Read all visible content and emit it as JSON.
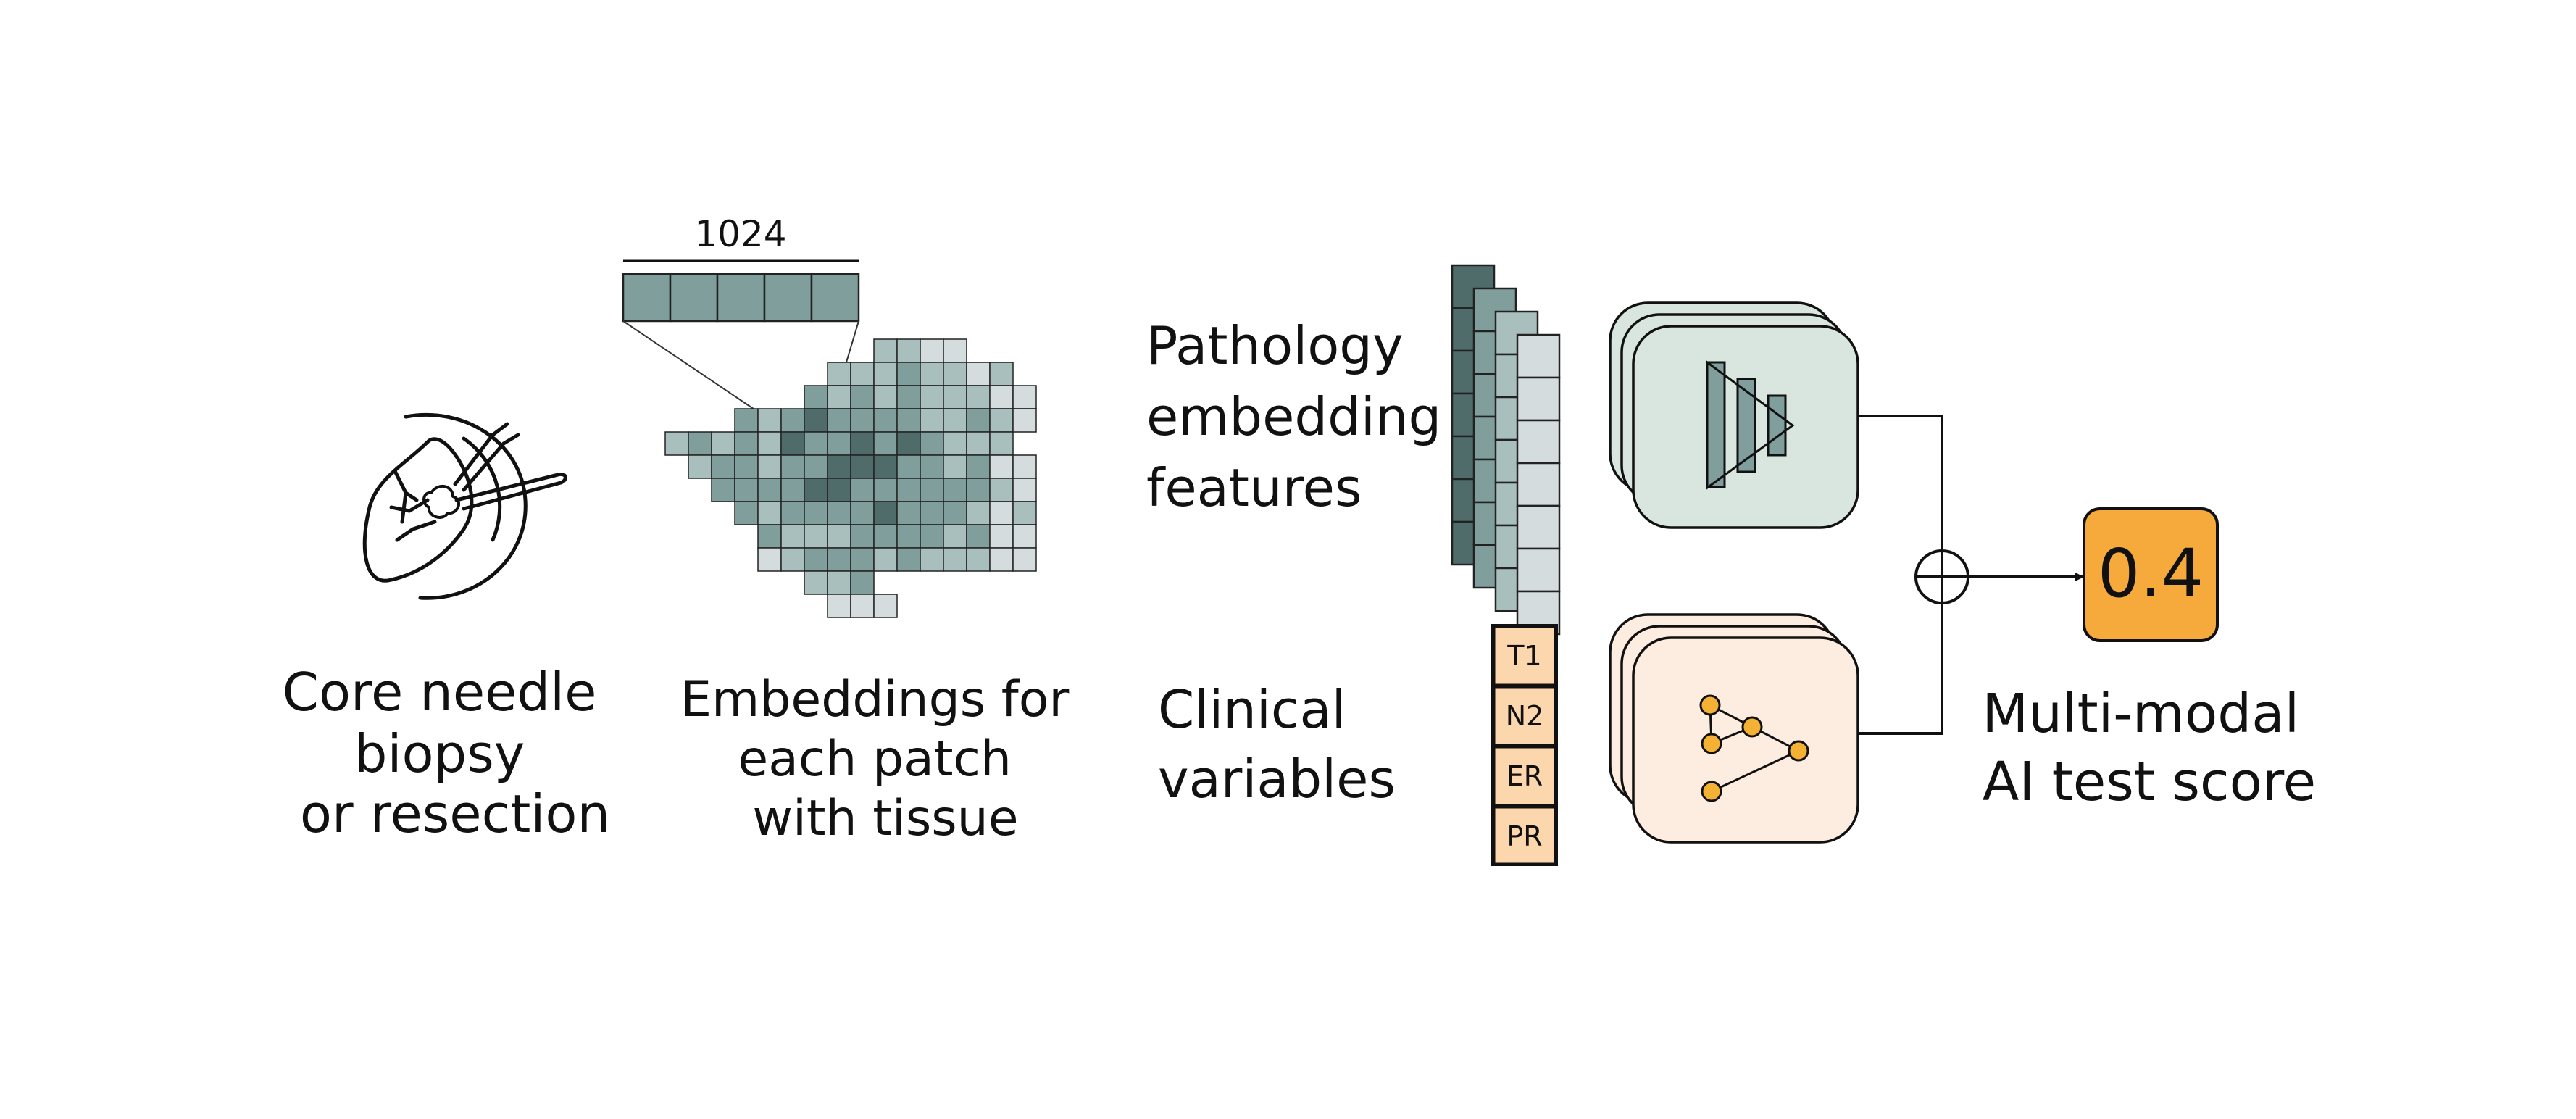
{
  "biopsy": {
    "label_lines": [
      "Core needle",
      "biopsy",
      "or resection"
    ],
    "icon": "biopsy-icon"
  },
  "patch_embeddings": {
    "dimension_label": "1024",
    "label_lines": [
      "Embeddings for",
      "each patch",
      "with tissue"
    ]
  },
  "pathology": {
    "label_lines": [
      "Pathology",
      "embedding",
      "features"
    ]
  },
  "clinical": {
    "label_lines": [
      "Clinical",
      "variables"
    ],
    "variables": [
      "T1",
      "N2",
      "ER",
      "PR"
    ]
  },
  "pathology_model": {
    "icon": "layered-triangle-icon"
  },
  "clinical_model": {
    "icon": "tree-network-icon"
  },
  "fusion": {
    "icon": "circle-plus-icon"
  },
  "output": {
    "score": "0.4",
    "label_lines": [
      "Multi-modal",
      "AI test score"
    ]
  },
  "colors": {
    "teal_dark": "#4f6c6b",
    "teal_mid": "#7f9e9c",
    "teal_light": "#a9bfbd",
    "gray_light": "#d5dcdd",
    "path_model_fill": "#d8e6df",
    "clin_model_fill": "#fdece0",
    "clin_var_fill": "#fcd6ad",
    "node_orange": "#f5b133",
    "score_fill": "#f7aa3c"
  }
}
